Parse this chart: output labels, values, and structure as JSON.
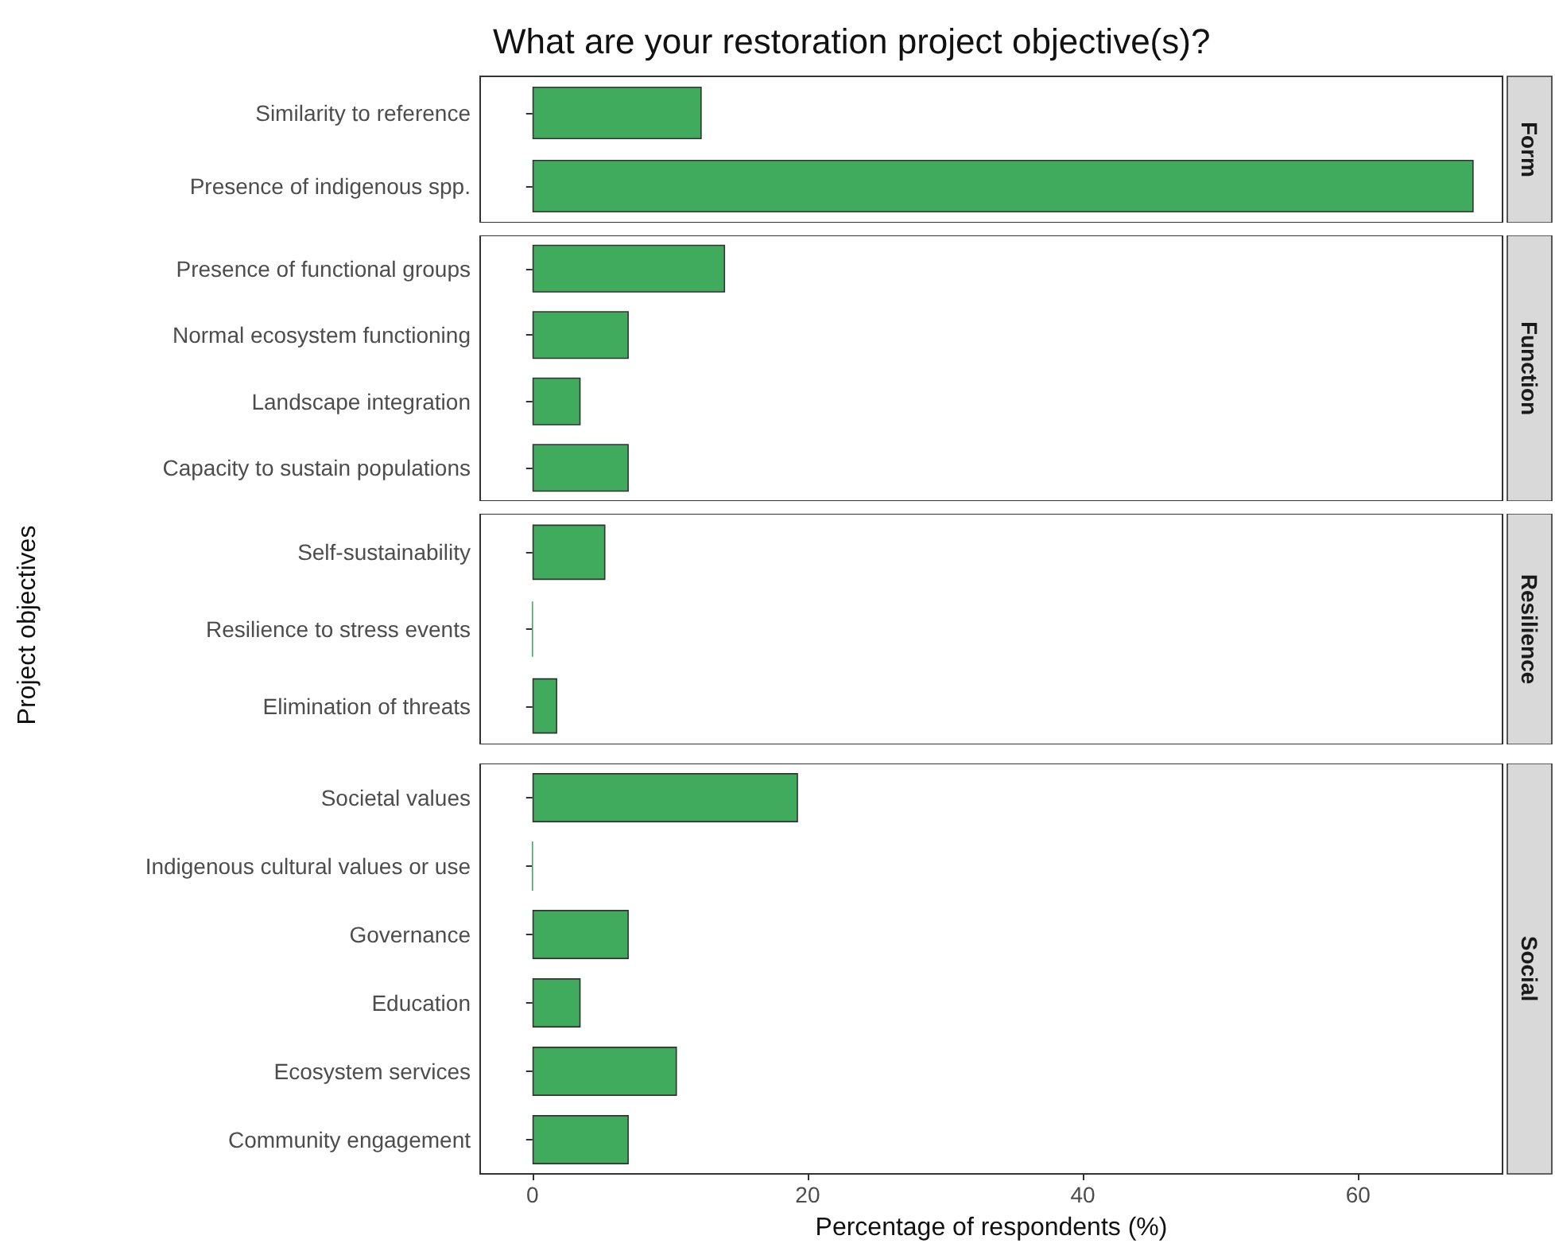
{
  "chart_data": [
    {
      "type": "bar",
      "orientation": "horizontal",
      "title": "What are your restoration project objective(s)?",
      "categories": [
        "Similarity to reference",
        "Presence of indigenous spp."
      ],
      "values": [
        12.3,
        68.4
      ],
      "color": "#41ab5d",
      "xlim": [
        -3.8,
        70.5
      ],
      "xticks": [
        0,
        20,
        40,
        60
      ],
      "tick_labels": "y",
      "grid": false,
      "annotations": [
        "Form"
      ]
    },
    {
      "type": "bar",
      "orientation": "horizontal",
      "categories": [
        "Presence of functional groups",
        "Normal ecosystem functioning",
        "Landscape integration",
        "Capacity to sustain populations"
      ],
      "values": [
        14.0,
        7.0,
        3.5,
        7.0
      ],
      "color": "#41ab5d",
      "xlim": [
        -3.8,
        70.5
      ],
      "xticks": [
        0,
        20,
        40,
        60
      ],
      "tick_labels": "y",
      "grid": false,
      "annotations": [
        "Function"
      ]
    },
    {
      "type": "bar",
      "orientation": "horizontal",
      "ylabel": "Project objectives",
      "categories": [
        "Self-sustainability",
        "Resilience to stress events",
        "Elimination of threats"
      ],
      "values": [
        5.3,
        0,
        1.8
      ],
      "color": "#41ab5d",
      "xlim": [
        -3.8,
        70.5
      ],
      "xticks": [
        0,
        20,
        40,
        60
      ],
      "tick_labels": "y",
      "grid": false,
      "annotations": [
        "Resilience"
      ]
    },
    {
      "type": "bar",
      "orientation": "horizontal",
      "xlabel": "Percentage of respondents (%)",
      "categories": [
        "Societal values",
        "Indigenous cultural values or use",
        "Governance",
        "Education",
        "Ecosystem services",
        "Community engagement"
      ],
      "values": [
        19.3,
        0,
        7.0,
        3.5,
        10.5,
        7.0
      ],
      "color": "#41ab5d",
      "xlim": [
        -3.8,
        70.5
      ],
      "xticks": [
        0,
        20,
        40,
        60
      ],
      "grid": false,
      "annotations": [
        "Social"
      ]
    }
  ]
}
